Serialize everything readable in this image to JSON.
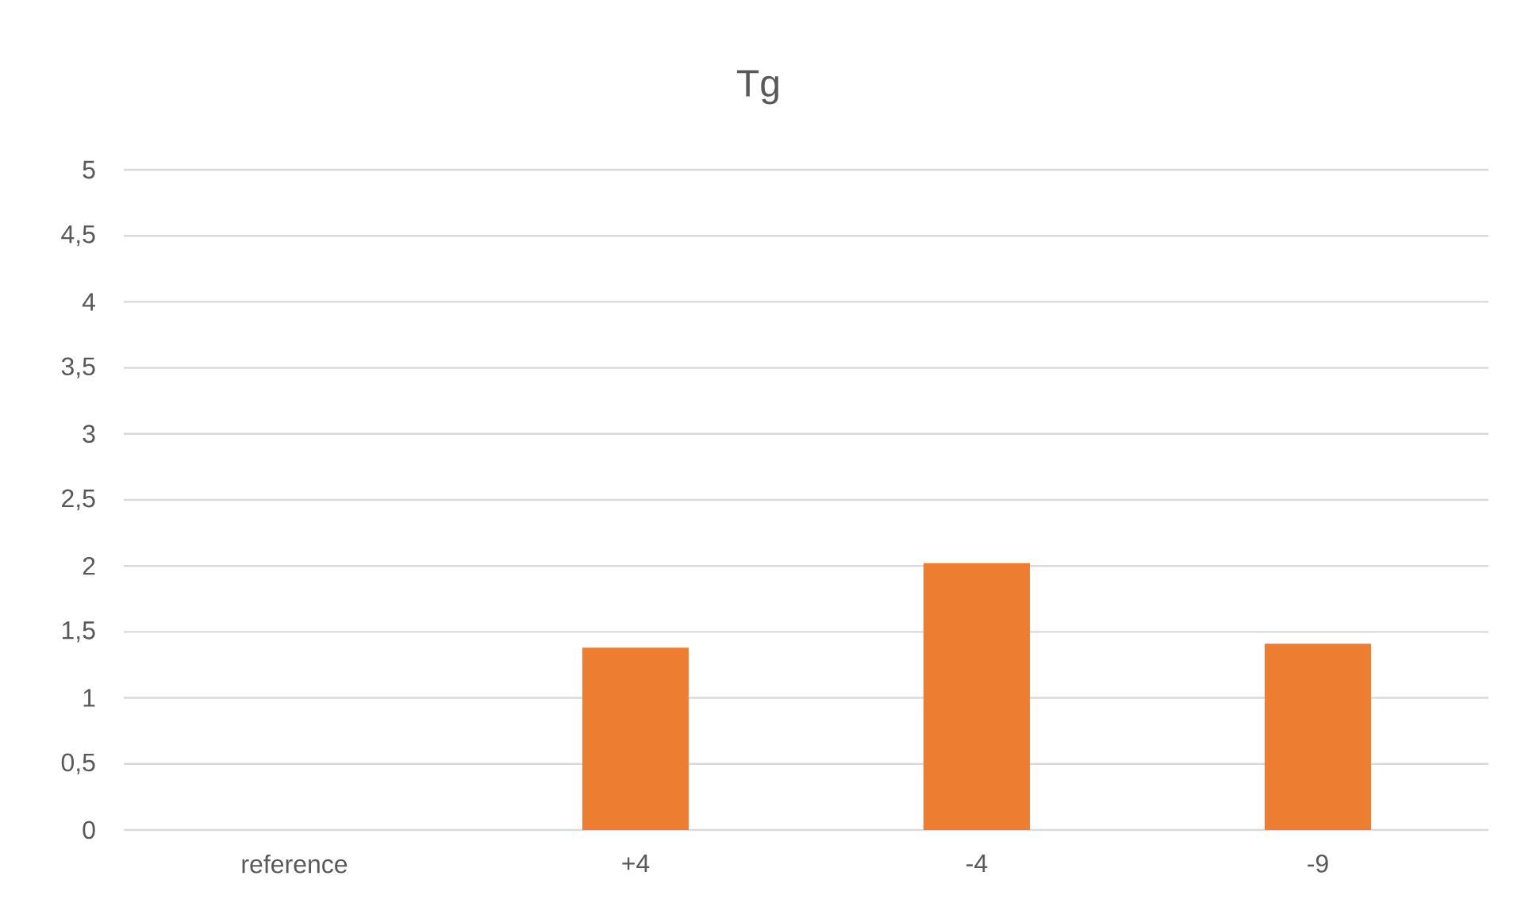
{
  "chart_data": {
    "type": "bar",
    "title": "Tg",
    "categories": [
      "reference",
      "+4",
      "-4",
      "-9"
    ],
    "values": [
      0,
      1.38,
      2.02,
      1.41
    ],
    "color": "#ed7d31",
    "ylim": [
      0,
      5
    ],
    "yticks": [
      0,
      {
        "value": 0.5,
        "label": "0,5"
      },
      1,
      {
        "value": 1.5,
        "label": "1,5"
      },
      2,
      {
        "value": 2.5,
        "label": "2,5"
      },
      3,
      {
        "value": 3.5,
        "label": "3,5"
      },
      4,
      {
        "value": 4.5,
        "label": "4,5"
      },
      5
    ],
    "grid": "y"
  }
}
